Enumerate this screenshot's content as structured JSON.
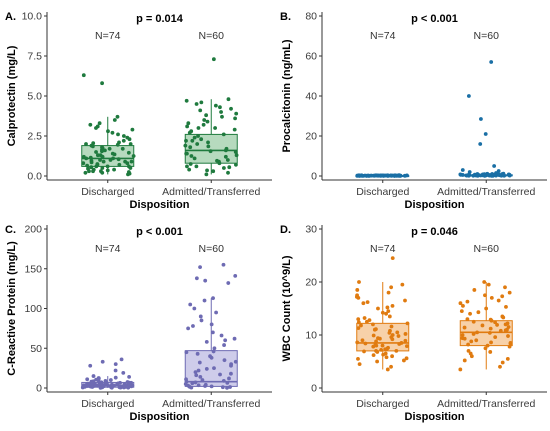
{
  "chart_data": [
    {
      "type": "boxplot",
      "panel_label": "A.",
      "ylabel": "Calprotectin (mg/L)",
      "xlabel": "Disposition",
      "ylim": [
        0,
        10
      ],
      "yticks": [
        0.0,
        2.5,
        5.0,
        7.5,
        10.0
      ],
      "ytick_labels": [
        "0.0",
        "2.5",
        "5.0",
        "7.5",
        "10.0"
      ],
      "annotation": "p = 0.014",
      "color": "#1f7a3e",
      "fill": "#a9d3b3",
      "categories": [
        "Discharged",
        "Admitted/Transferred"
      ],
      "n_labels": [
        "N=74",
        "N=60"
      ],
      "boxes": [
        {
          "q1": 0.6,
          "median": 1.1,
          "q3": 1.9,
          "whisker_low": 0.1,
          "whisker_high": 3.7
        },
        {
          "q1": 0.8,
          "median": 1.6,
          "q3": 2.6,
          "whisker_low": 0.1,
          "whisker_high": 4.8
        }
      ],
      "outliers": [
        [
          5.8,
          6.3
        ],
        [
          7.3
        ]
      ],
      "points": [
        [
          0.1,
          0.15,
          0.2,
          0.2,
          0.25,
          0.3,
          0.3,
          0.35,
          0.4,
          0.4,
          0.45,
          0.5,
          0.5,
          0.55,
          0.6,
          0.6,
          0.65,
          0.7,
          0.7,
          0.75,
          0.8,
          0.8,
          0.85,
          0.9,
          0.9,
          0.95,
          1.0,
          1.0,
          1.05,
          1.1,
          1.1,
          1.15,
          1.2,
          1.2,
          1.25,
          1.3,
          1.35,
          1.4,
          1.45,
          1.5,
          1.55,
          1.6,
          1.65,
          1.7,
          1.75,
          1.8,
          1.85,
          1.9,
          1.95,
          2.0,
          2.05,
          2.1,
          2.2,
          2.3,
          2.4,
          2.5,
          2.6,
          2.7,
          2.8,
          2.9,
          3.0,
          3.1,
          3.2,
          3.3,
          3.5,
          3.7,
          0.3,
          0.6,
          0.9,
          1.3,
          1.7,
          5.8,
          6.3,
          2.0
        ],
        [
          0.1,
          0.2,
          0.3,
          0.35,
          0.4,
          0.5,
          0.55,
          0.6,
          0.7,
          0.75,
          0.8,
          0.9,
          0.95,
          1.0,
          1.1,
          1.2,
          1.25,
          1.3,
          1.4,
          1.5,
          1.55,
          1.6,
          1.7,
          1.8,
          1.85,
          1.9,
          2.0,
          2.1,
          2.2,
          2.3,
          2.4,
          2.5,
          2.6,
          2.7,
          2.8,
          2.9,
          3.0,
          3.1,
          3.2,
          3.3,
          3.4,
          3.5,
          3.6,
          3.7,
          3.8,
          4.0,
          4.1,
          4.2,
          4.3,
          4.4,
          4.5,
          4.6,
          4.7,
          4.8,
          0.6,
          1.4,
          2.2,
          3.0,
          3.9,
          7.3
        ]
      ]
    },
    {
      "type": "boxplot",
      "panel_label": "B.",
      "ylabel": "Procalcitonin (ng/mL)",
      "xlabel": "Disposition",
      "ylim": [
        0,
        80
      ],
      "yticks": [
        0,
        20,
        40,
        60,
        80
      ],
      "ytick_labels": [
        "0",
        "20",
        "40",
        "60",
        "80"
      ],
      "annotation": "p < 0.001",
      "color": "#1a6fa5",
      "fill": "#9cc6e0",
      "categories": [
        "Discharged",
        "Admitted/Transferred"
      ],
      "n_labels": [
        "N=74",
        "N=60"
      ],
      "boxes": [
        {
          "q1": 0.05,
          "median": 0.1,
          "q3": 0.2,
          "whisker_low": 0.02,
          "whisker_high": 0.4
        },
        {
          "q1": 0.1,
          "median": 0.2,
          "q3": 0.6,
          "whisker_low": 0.02,
          "whisker_high": 1.2
        }
      ],
      "outliers": [
        [],
        [
          57.0,
          40.0,
          28.5,
          21.0,
          16.0,
          5.0,
          3.0,
          2.5,
          2.0
        ]
      ],
      "points": [
        [
          0.05,
          0.05,
          0.06,
          0.07,
          0.08,
          0.08,
          0.09,
          0.1,
          0.1,
          0.1,
          0.11,
          0.12,
          0.12,
          0.13,
          0.14,
          0.15,
          0.15,
          0.16,
          0.17,
          0.18,
          0.2,
          0.2,
          0.22,
          0.24,
          0.25,
          0.26,
          0.28,
          0.3,
          0.3,
          0.32,
          0.35,
          0.38,
          0.4,
          0.05,
          0.06,
          0.07,
          0.08,
          0.09,
          0.1,
          0.11,
          0.12,
          0.13,
          0.14,
          0.15,
          0.16,
          0.17,
          0.18,
          0.19,
          0.2,
          0.21,
          0.22,
          0.23,
          0.24,
          0.25,
          0.05,
          0.07,
          0.09,
          0.11,
          0.13,
          0.15,
          0.17,
          0.19,
          0.21,
          0.23,
          0.25,
          0.27,
          0.29,
          0.31,
          0.33,
          0.35,
          0.37,
          0.39,
          0.1,
          0.2
        ],
        [
          0.05,
          0.08,
          0.1,
          0.12,
          0.15,
          0.18,
          0.2,
          0.22,
          0.25,
          0.3,
          0.35,
          0.4,
          0.45,
          0.5,
          0.55,
          0.6,
          0.7,
          0.8,
          0.9,
          1.0,
          1.1,
          1.2,
          0.1,
          0.2,
          0.3,
          0.4,
          0.5,
          0.6,
          0.7,
          0.8,
          0.9,
          1.0,
          0.15,
          0.25,
          0.35,
          0.45,
          0.55,
          0.65,
          0.75,
          0.85,
          0.95,
          1.05,
          0.12,
          0.22,
          0.32,
          0.42,
          0.52,
          0.62,
          0.72,
          0.82,
          57.0,
          40.0,
          28.5,
          21.0,
          16.0,
          5.0,
          3.0,
          2.5,
          2.0,
          1.5
        ]
      ]
    },
    {
      "type": "boxplot",
      "panel_label": "C.",
      "ylabel": "C-Reactive Protein (mg/L)",
      "xlabel": "Disposition",
      "ylim": [
        0,
        200
      ],
      "yticks": [
        0,
        50,
        100,
        150,
        200
      ],
      "ytick_labels": [
        "0",
        "50",
        "100",
        "150",
        "200"
      ],
      "annotation": "p < 0.001",
      "color": "#6e6bb3",
      "fill": "#c5c3e6",
      "categories": [
        "Discharged",
        "Admitted/Transferred"
      ],
      "n_labels": [
        "N=74",
        "N=60"
      ],
      "boxes": [
        {
          "q1": 1.0,
          "median": 3.0,
          "q3": 7.0,
          "whisker_low": 0.2,
          "whisker_high": 15.0
        },
        {
          "q1": 2.0,
          "median": 8.0,
          "q3": 47.0,
          "whisker_low": 0.2,
          "whisker_high": 113.0
        }
      ],
      "outliers": [
        [
          36.0,
          33.0,
          30.0,
          28.0,
          22.0,
          19.0
        ],
        [
          155.0,
          152.0,
          141.0,
          138.0,
          135.0,
          132.0
        ]
      ],
      "points": [
        [
          0.2,
          0.5,
          0.8,
          1.0,
          1.2,
          1.5,
          1.8,
          2.0,
          2.2,
          2.5,
          2.8,
          3.0,
          3.0,
          3.2,
          3.5,
          3.8,
          4.0,
          4.2,
          4.5,
          5.0,
          5.5,
          6.0,
          6.5,
          7.0,
          7.5,
          8.0,
          9.0,
          10.0,
          11.0,
          12.0,
          13.0,
          14.0,
          15.0,
          0.3,
          0.6,
          0.9,
          1.1,
          1.4,
          1.7,
          2.1,
          2.4,
          2.7,
          3.1,
          3.4,
          3.7,
          4.1,
          4.4,
          4.7,
          5.2,
          5.8,
          6.2,
          6.8,
          7.2,
          8.5,
          9.5,
          10.5,
          12.5,
          0.4,
          0.7,
          1.3,
          1.9,
          2.6,
          3.3,
          4.6,
          5.6,
          6.6,
          36.0,
          33.0,
          30.0,
          28.0,
          22.0,
          19.0,
          1.6,
          2.9
        ],
        [
          0.2,
          0.5,
          1.0,
          1.5,
          2.0,
          2.5,
          3.0,
          4.0,
          5.0,
          6.0,
          7.0,
          8.0,
          9.0,
          10.0,
          12.0,
          14.0,
          16.0,
          18.0,
          20.0,
          22.0,
          25.0,
          28.0,
          30.0,
          32.0,
          35.0,
          38.0,
          40.0,
          43.0,
          46.0,
          50.0,
          54.0,
          58.0,
          62.0,
          66.0,
          70.0,
          75.0,
          80.0,
          85.0,
          90.0,
          95.0,
          100.0,
          105.0,
          110.0,
          113.0,
          1.2,
          3.5,
          6.5,
          11.0,
          17.0,
          24.0,
          33.0,
          45.0,
          60.0,
          78.0,
          155.0,
          152.0,
          141.0,
          138.0,
          135.0,
          132.0
        ]
      ]
    },
    {
      "type": "boxplot",
      "panel_label": "D.",
      "ylabel": "WBC Count (10^9/L)",
      "xlabel": "Disposition",
      "ylim": [
        0,
        30
      ],
      "yticks": [
        0,
        10,
        20,
        30
      ],
      "ytick_labels": [
        "0",
        "10",
        "20",
        "30"
      ],
      "annotation": "p = 0.046",
      "color": "#e07b10",
      "fill": "#f6c99a",
      "categories": [
        "Discharged",
        "Admitted/Transferred"
      ],
      "n_labels": [
        "N=74",
        "N=60"
      ],
      "boxes": [
        {
          "q1": 7.0,
          "median": 8.5,
          "q3": 12.2,
          "whisker_low": 3.5,
          "whisker_high": 20.0
        },
        {
          "q1": 8.0,
          "median": 10.5,
          "q3": 12.7,
          "whisker_low": 3.5,
          "whisker_high": 20.0
        }
      ],
      "outliers": [
        [
          24.5
        ],
        []
      ],
      "points": [
        [
          3.5,
          4.0,
          4.5,
          5.0,
          5.2,
          5.5,
          5.8,
          6.0,
          6.2,
          6.5,
          6.8,
          7.0,
          7.0,
          7.2,
          7.4,
          7.6,
          7.8,
          8.0,
          8.0,
          8.2,
          8.4,
          8.5,
          8.6,
          8.8,
          9.0,
          9.2,
          9.4,
          9.6,
          9.8,
          10.0,
          10.2,
          10.5,
          10.8,
          11.0,
          11.3,
          11.6,
          12.0,
          12.2,
          12.5,
          12.8,
          13.0,
          13.5,
          14.0,
          14.5,
          15.0,
          15.5,
          16.0,
          16.5,
          17.0,
          17.5,
          18.0,
          18.5,
          19.0,
          19.5,
          20.0,
          6.3,
          6.9,
          7.3,
          7.9,
          8.3,
          8.9,
          9.3,
          9.9,
          10.4,
          11.1,
          11.8,
          12.4,
          13.2,
          14.2,
          15.2,
          16.2,
          17.2,
          24.5,
          5.6
        ],
        [
          3.5,
          4.0,
          4.8,
          5.5,
          6.0,
          6.5,
          7.0,
          7.5,
          8.0,
          8.2,
          8.5,
          8.8,
          9.0,
          9.3,
          9.6,
          10.0,
          10.2,
          10.5,
          10.8,
          11.0,
          11.2,
          11.5,
          11.8,
          12.0,
          12.2,
          12.5,
          12.7,
          13.0,
          13.5,
          14.0,
          14.5,
          15.0,
          15.5,
          16.0,
          16.5,
          17.0,
          17.5,
          18.0,
          18.5,
          19.0,
          19.5,
          20.0,
          6.8,
          7.8,
          8.6,
          9.4,
          10.4,
          11.4,
          12.4,
          13.3,
          14.3,
          15.3,
          16.3,
          17.3,
          5.2,
          9.8,
          10.9,
          11.9,
          12.9,
          8.4
        ]
      ]
    }
  ]
}
